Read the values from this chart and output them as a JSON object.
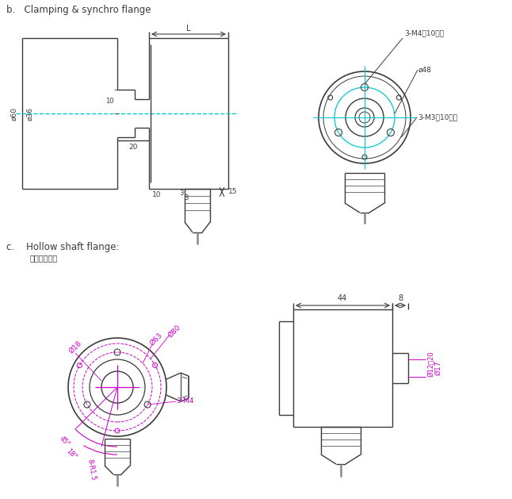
{
  "title_b": "b.   Clamping & synchro flange",
  "title_c": "c.    Hollow shaft flange:",
  "subtitle_c": "安装尺寸图：",
  "bg_color": "#ffffff",
  "line_color": "#3a3a3a",
  "cyan_color": "#00c8d0",
  "magenta_color": "#cc00cc",
  "gray_color": "#888888"
}
